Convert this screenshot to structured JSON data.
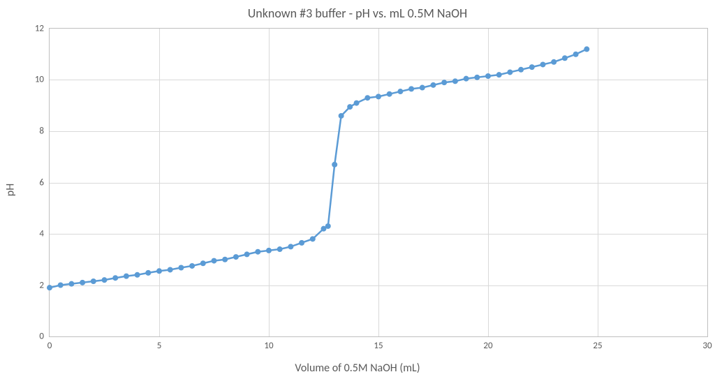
{
  "chart": {
    "type": "line-scatter",
    "title": "Unknown #3 buffer - pH vs. mL 0.5M NaOH",
    "xlabel": "Volume of 0.5M NaOH (mL)",
    "ylabel": "pH",
    "title_fontsize": 18,
    "label_fontsize": 16,
    "tick_fontsize": 13,
    "background_color": "#ffffff",
    "border_color": "#bfbfbf",
    "grid_color": "#d9d9d9",
    "text_color": "#595959",
    "series_color": "#5b9bd5",
    "line_width": 2.5,
    "marker_radius": 4,
    "xlim": [
      0,
      30
    ],
    "ylim": [
      0,
      12
    ],
    "xticks": [
      0,
      5,
      10,
      15,
      20,
      25,
      30
    ],
    "yticks": [
      0,
      2,
      4,
      6,
      8,
      10,
      12
    ],
    "data": {
      "x": [
        0,
        0.5,
        1,
        1.5,
        2,
        2.5,
        3,
        3.5,
        4,
        4.5,
        5,
        5.5,
        6,
        6.5,
        7,
        7.5,
        8,
        8.5,
        9,
        9.5,
        10,
        10.5,
        11,
        11.5,
        12,
        12.5,
        12.7,
        13,
        13.3,
        13.7,
        14,
        14.5,
        15,
        15.5,
        16,
        16.5,
        17,
        17.5,
        18,
        18.5,
        19,
        19.5,
        20,
        20.5,
        21,
        21.5,
        22,
        22.5,
        23,
        23.5,
        24,
        24.5
      ],
      "y": [
        1.9,
        2.0,
        2.05,
        2.1,
        2.15,
        2.2,
        2.28,
        2.35,
        2.4,
        2.48,
        2.55,
        2.6,
        2.68,
        2.75,
        2.85,
        2.95,
        3.0,
        3.1,
        3.2,
        3.3,
        3.35,
        3.4,
        3.5,
        3.65,
        3.8,
        4.2,
        4.3,
        6.7,
        8.6,
        8.95,
        9.1,
        9.3,
        9.35,
        9.45,
        9.55,
        9.65,
        9.7,
        9.8,
        9.9,
        9.95,
        10.05,
        10.1,
        10.15,
        10.2,
        10.3,
        10.4,
        10.5,
        10.6,
        10.7,
        10.85,
        11.0,
        11.2
      ]
    }
  }
}
